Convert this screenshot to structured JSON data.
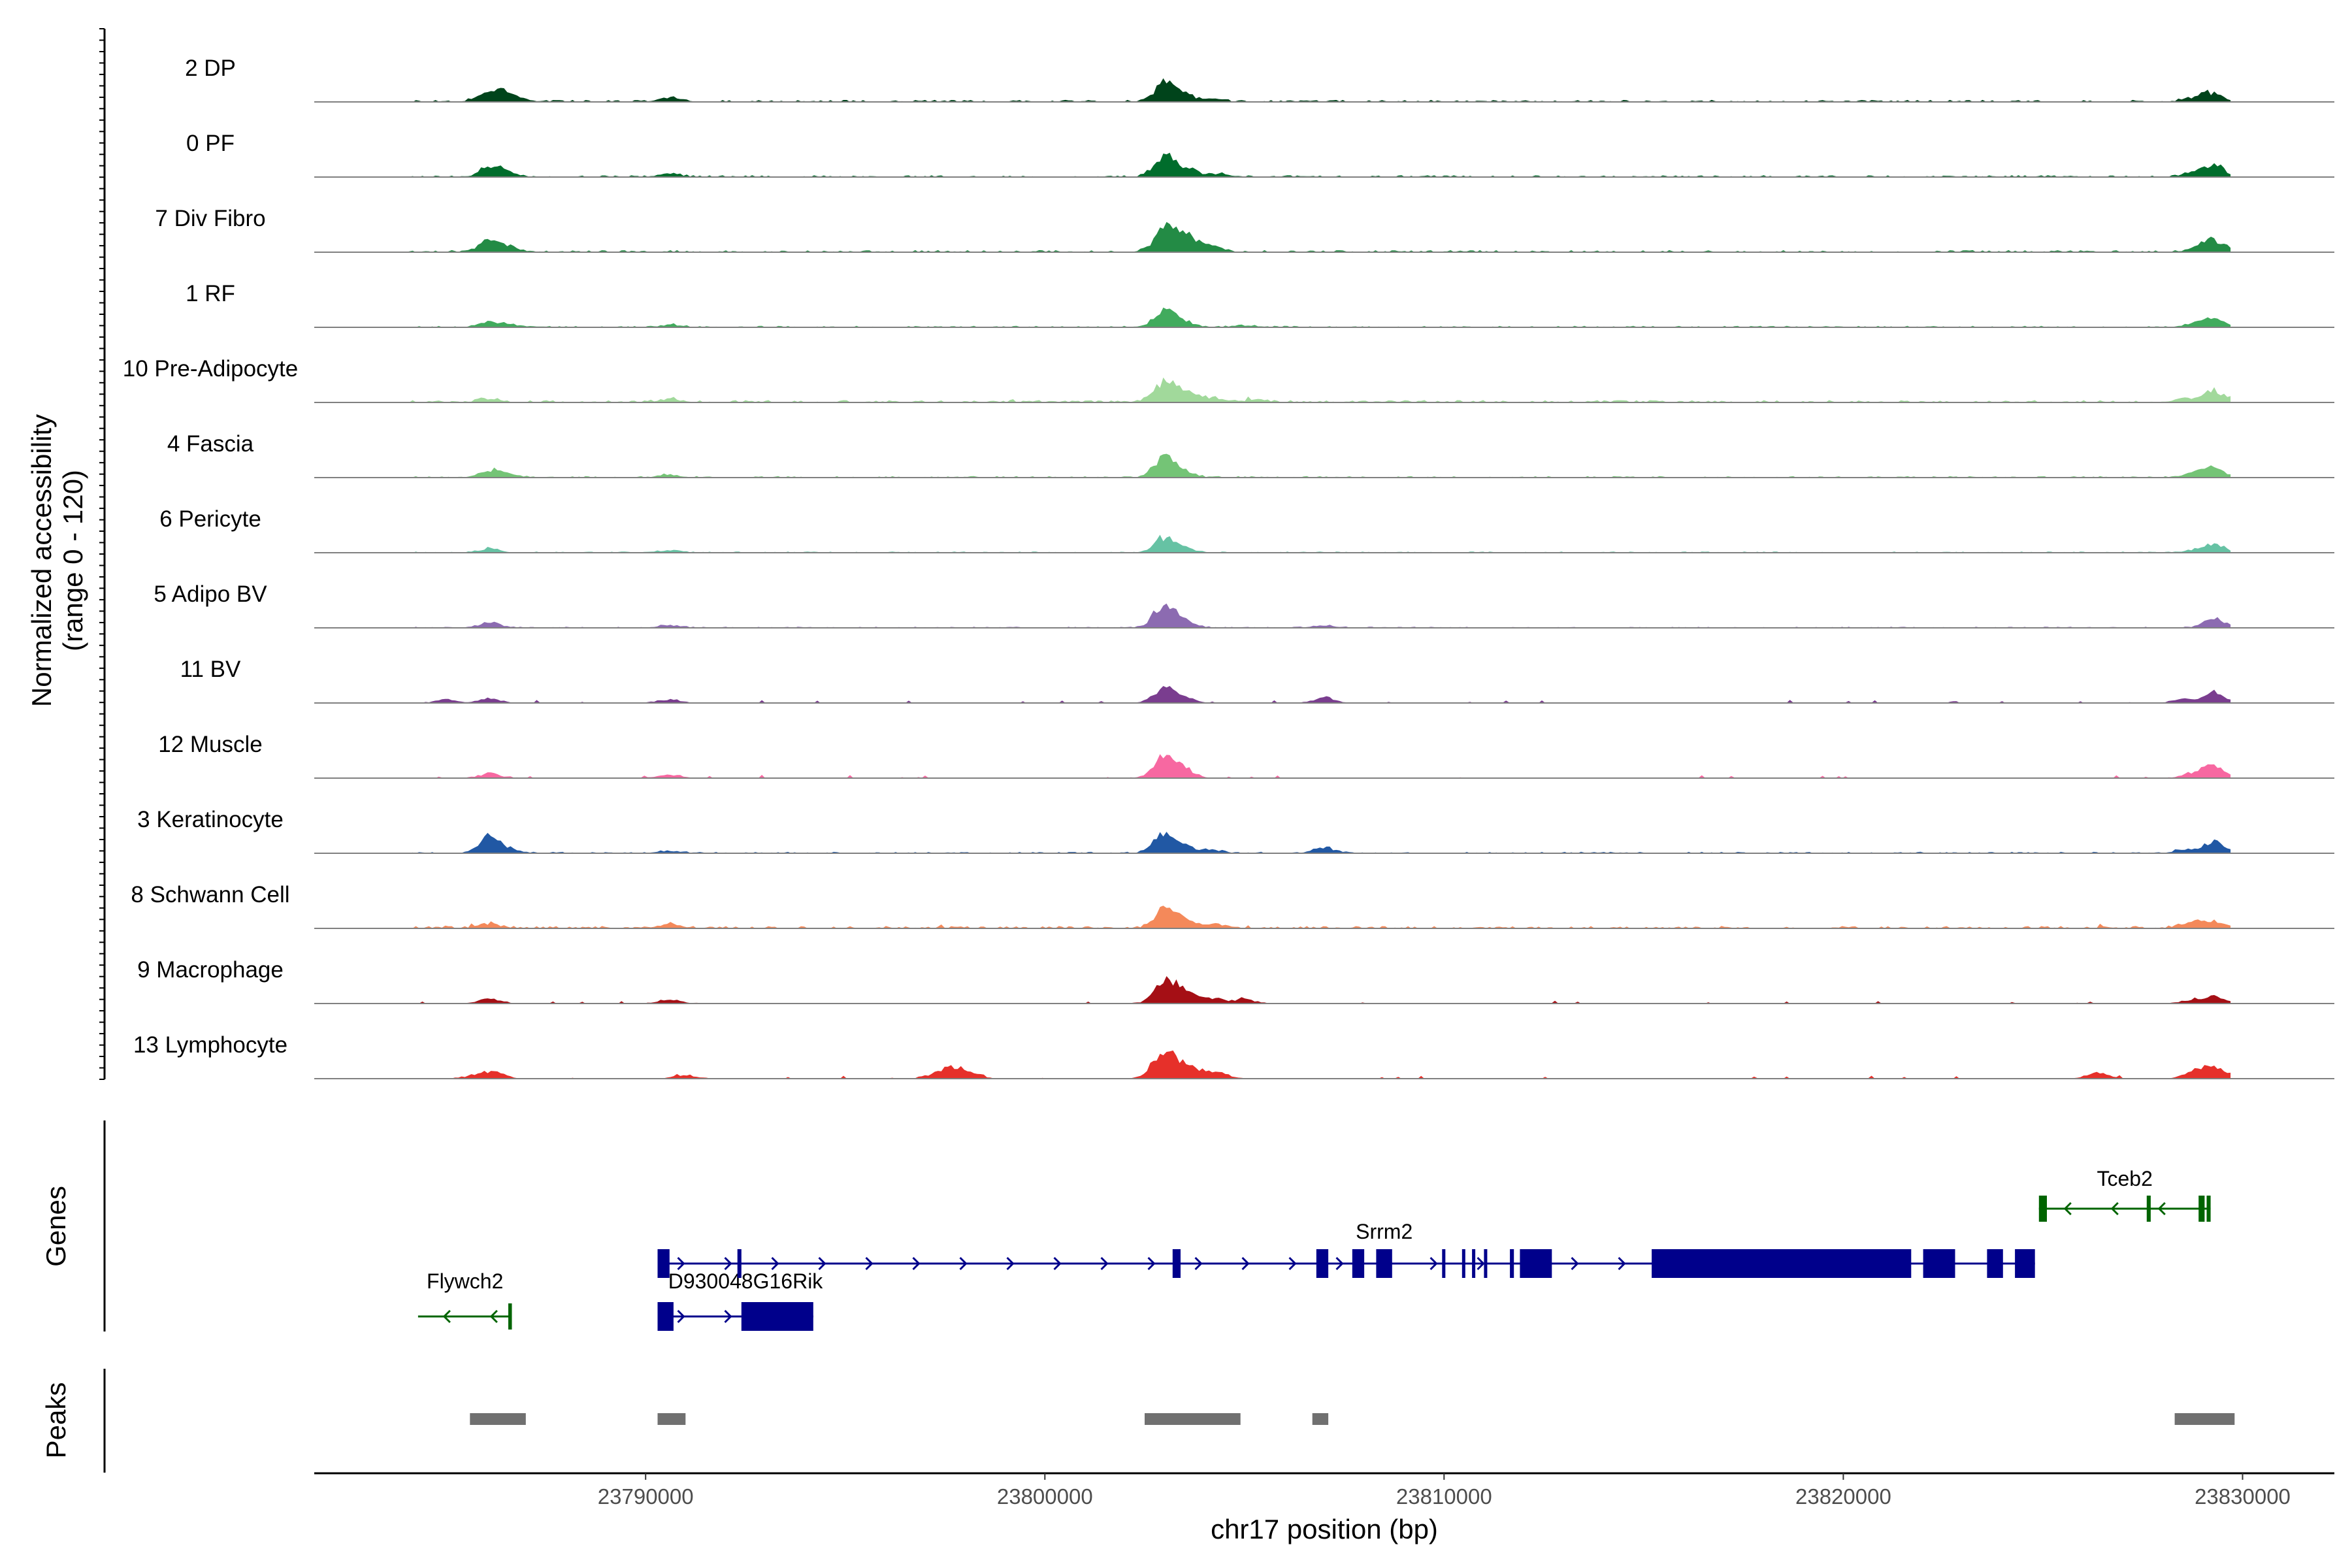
{
  "chart_data": {
    "type": "area",
    "title": "",
    "chromosome": "chr17",
    "xlabel": "chr17 position (bp)",
    "ylabel_line1": "Normalized accessibility",
    "ylabel_line2": "(range 0 - 120)",
    "y_range": [
      0,
      120
    ],
    "xlim": [
      23781700,
      23832300
    ],
    "x_ticks": [
      23790000,
      23800000,
      23810000,
      23820000,
      23830000
    ],
    "x_tick_labels": [
      "23790000",
      "23800000",
      "23810000",
      "23820000",
      "23830000"
    ],
    "region": [
      23784000,
      23829700
    ],
    "genes_axis_label": "Genes",
    "peaks_axis_label": "Peaks",
    "tracks": [
      {
        "name": "2 DP",
        "color": "#00441b",
        "noise": 0.035,
        "scatter": 0,
        "peaks": [
          [
            23786000,
            14
          ],
          [
            23786350,
            22
          ],
          [
            23786700,
            10
          ],
          [
            23790600,
            10
          ],
          [
            23803000,
            48
          ],
          [
            23803500,
            15
          ],
          [
            23804200,
            6
          ],
          [
            23828700,
            6
          ],
          [
            23829200,
            24
          ]
        ]
      },
      {
        "name": "0 PF",
        "color": "#006d2c",
        "noise": 0.03,
        "scatter": 0,
        "peaks": [
          [
            23786100,
            25
          ],
          [
            23786500,
            10
          ],
          [
            23790600,
            9
          ],
          [
            23803000,
            52
          ],
          [
            23803600,
            18
          ],
          [
            23804400,
            8
          ],
          [
            23828800,
            10
          ],
          [
            23829300,
            30
          ]
        ]
      },
      {
        "name": "7 Div Fibro",
        "color": "#238b45",
        "noise": 0.035,
        "scatter": 0,
        "peaks": [
          [
            23786100,
            32
          ],
          [
            23786600,
            10
          ],
          [
            23803000,
            62
          ],
          [
            23803500,
            38
          ],
          [
            23804100,
            20
          ],
          [
            23828900,
            12
          ],
          [
            23829300,
            28
          ]
        ]
      },
      {
        "name": "1 RF",
        "color": "#41ab5d",
        "noise": 0.025,
        "scatter": 0,
        "peaks": [
          [
            23786100,
            12
          ],
          [
            23786600,
            6
          ],
          [
            23790600,
            6
          ],
          [
            23803000,
            42
          ],
          [
            23803500,
            14
          ],
          [
            23805000,
            4
          ],
          [
            23829300,
            20
          ],
          [
            23828800,
            10
          ]
        ]
      },
      {
        "name": "10 Pre-Adipocyte",
        "color": "#a1d99b",
        "noise": 0.04,
        "scatter": 0.12,
        "peaks": [
          [
            23786100,
            10
          ],
          [
            23790600,
            8
          ],
          [
            23803000,
            52
          ],
          [
            23803500,
            25
          ],
          [
            23804200,
            12
          ],
          [
            23805300,
            6
          ],
          [
            23829300,
            28
          ],
          [
            23828600,
            10
          ]
        ]
      },
      {
        "name": "4 Fascia",
        "color": "#74c476",
        "noise": 0.025,
        "scatter": 0,
        "peaks": [
          [
            23786100,
            18
          ],
          [
            23786600,
            8
          ],
          [
            23790600,
            7
          ],
          [
            23803000,
            48
          ],
          [
            23803500,
            14
          ],
          [
            23828800,
            12
          ],
          [
            23829300,
            22
          ]
        ]
      },
      {
        "name": "6 Pericyte",
        "color": "#66c2a4",
        "noise": 0.02,
        "scatter": 0,
        "peaks": [
          [
            23786100,
            10
          ],
          [
            23790600,
            6
          ],
          [
            23803000,
            38
          ],
          [
            23803500,
            10
          ],
          [
            23829300,
            20
          ],
          [
            23828800,
            6
          ]
        ]
      },
      {
        "name": "5 Adipo BV",
        "color": "#8c6bb1",
        "noise": 0.02,
        "scatter": 0,
        "peaks": [
          [
            23786100,
            14
          ],
          [
            23790600,
            7
          ],
          [
            23803000,
            62
          ],
          [
            23803500,
            16
          ],
          [
            23807000,
            6
          ],
          [
            23829300,
            24
          ]
        ]
      },
      {
        "name": "11 BV",
        "color": "#7a3d8f",
        "noise": 0.01,
        "scatter": 0.45,
        "peaks": [
          [
            23786100,
            12
          ],
          [
            23785000,
            8
          ],
          [
            23790600,
            10
          ],
          [
            23803000,
            40
          ],
          [
            23803500,
            14
          ],
          [
            23807000,
            14
          ],
          [
            23829300,
            28
          ],
          [
            23828500,
            10
          ]
        ]
      },
      {
        "name": "12 Muscle",
        "color": "#f768a1",
        "noise": 0.01,
        "scatter": 0.3,
        "peaks": [
          [
            23786100,
            12
          ],
          [
            23790600,
            10
          ],
          [
            23803000,
            62
          ],
          [
            23803500,
            20
          ],
          [
            23829300,
            28
          ],
          [
            23828800,
            14
          ]
        ]
      },
      {
        "name": "3 Keratinocyte",
        "color": "#2158a4",
        "noise": 0.025,
        "scatter": 0,
        "peaks": [
          [
            23786100,
            40
          ],
          [
            23786600,
            8
          ],
          [
            23790600,
            6
          ],
          [
            23803000,
            52
          ],
          [
            23803500,
            16
          ],
          [
            23804200,
            8
          ],
          [
            23807000,
            14
          ],
          [
            23829300,
            28
          ],
          [
            23828600,
            10
          ]
        ]
      },
      {
        "name": "8 Schwann Cell",
        "color": "#f4895a",
        "noise": 0.04,
        "scatter": 0.15,
        "peaks": [
          [
            23786100,
            12
          ],
          [
            23790600,
            10
          ],
          [
            23803000,
            48
          ],
          [
            23803500,
            22
          ],
          [
            23804300,
            10
          ],
          [
            23829300,
            20
          ],
          [
            23828700,
            14
          ]
        ]
      },
      {
        "name": "9 Macrophage",
        "color": "#a50f15",
        "noise": 0.01,
        "scatter": 0.35,
        "peaks": [
          [
            23786100,
            12
          ],
          [
            23790600,
            10
          ],
          [
            23803000,
            56
          ],
          [
            23803500,
            36
          ],
          [
            23804200,
            14
          ],
          [
            23805000,
            10
          ],
          [
            23829300,
            20
          ],
          [
            23828700,
            8
          ]
        ]
      },
      {
        "name": "13 Lymphocyte",
        "color": "#e6302a",
        "noise": 0.01,
        "scatter": 0.35,
        "peaks": [
          [
            23785700,
            8
          ],
          [
            23786200,
            18
          ],
          [
            23791000,
            10
          ],
          [
            23797300,
            12
          ],
          [
            23797700,
            22
          ],
          [
            23798100,
            12
          ],
          [
            23802900,
            55
          ],
          [
            23803300,
            35
          ],
          [
            23803800,
            20
          ],
          [
            23804400,
            12
          ],
          [
            23826400,
            16
          ],
          [
            23828800,
            18
          ],
          [
            23829300,
            28
          ]
        ]
      }
    ],
    "genes": [
      {
        "name": "Flywch2",
        "color": "#006400",
        "strand": "-",
        "start": 23784300,
        "end": 23786650,
        "exons": [
          [
            23786560,
            23786650
          ]
        ]
      },
      {
        "name": "D930048G16Rik",
        "color": "#00008b",
        "strand": "+",
        "start": 23790300,
        "end": 23794200,
        "exons": [
          [
            23790300,
            23790700
          ],
          [
            23792400,
            23794200
          ]
        ]
      },
      {
        "name": "Srrm2",
        "color": "#00008b",
        "strand": "+",
        "start": 23790300,
        "end": 23824800,
        "exons": [
          [
            23790300,
            23790600
          ],
          [
            23792300,
            23792400
          ],
          [
            23803200,
            23803400
          ],
          [
            23806800,
            23807100
          ],
          [
            23807700,
            23808000
          ],
          [
            23808300,
            23808700
          ],
          [
            23809950,
            23810010
          ],
          [
            23810450,
            23810510
          ],
          [
            23810700,
            23810760
          ],
          [
            23811000,
            23811050
          ],
          [
            23811650,
            23811750
          ],
          [
            23811900,
            23812700
          ],
          [
            23815200,
            23821700
          ],
          [
            23822000,
            23822800
          ],
          [
            23823600,
            23824000
          ],
          [
            23824300,
            23824800
          ]
        ]
      },
      {
        "name": "Tceb2",
        "color": "#006400",
        "strand": "-",
        "start": 23824900,
        "end": 23829200,
        "exons": [
          [
            23824900,
            23825100
          ],
          [
            23827600,
            23827700
          ],
          [
            23828900,
            23829050
          ],
          [
            23829100,
            23829200
          ]
        ]
      }
    ],
    "peaks": [
      [
        23785600,
        23787000
      ],
      [
        23790300,
        23791000
      ],
      [
        23802500,
        23804900
      ],
      [
        23806700,
        23807100
      ],
      [
        23828300,
        23829800
      ]
    ]
  }
}
